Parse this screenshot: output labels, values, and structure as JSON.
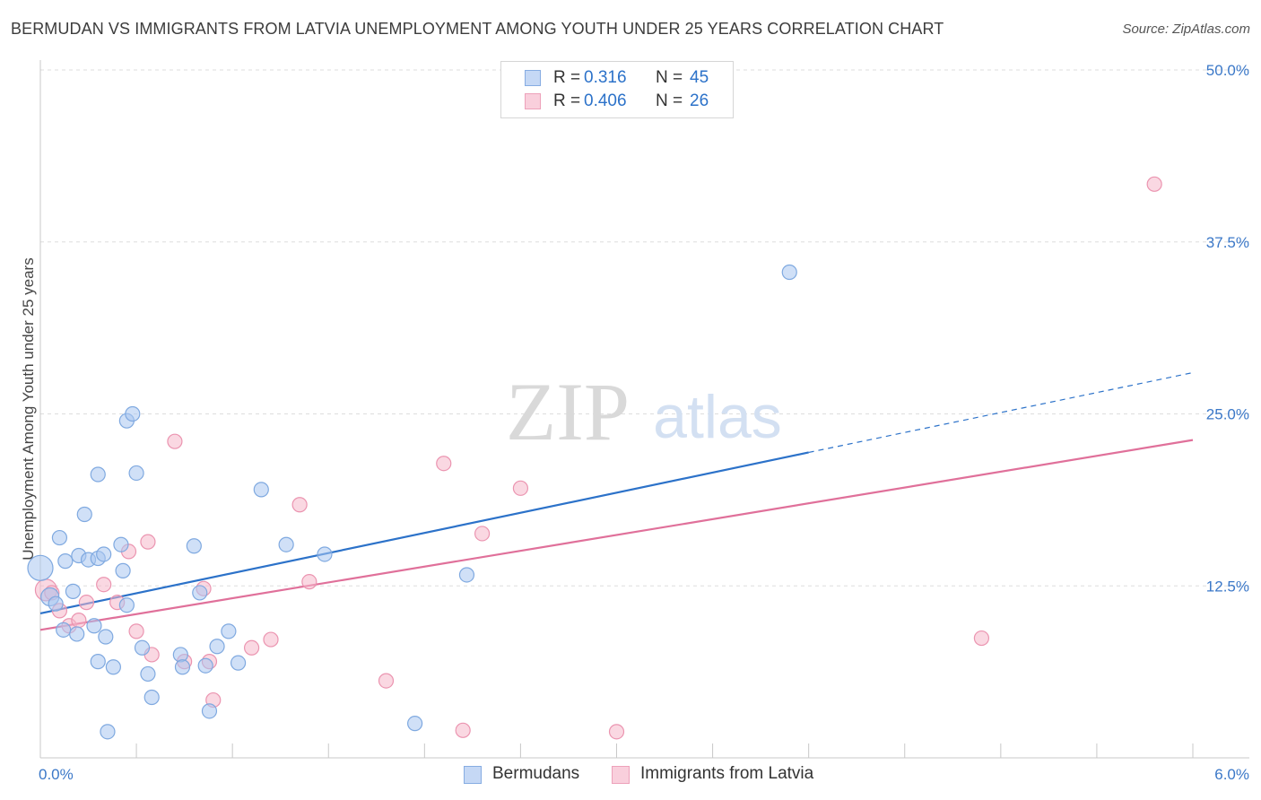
{
  "title": "BERMUDAN VS IMMIGRANTS FROM LATVIA UNEMPLOYMENT AMONG YOUTH UNDER 25 YEARS CORRELATION CHART",
  "source": "Source: ZipAtlas.com",
  "watermark": {
    "zip": "ZIP",
    "atlas": "atlas"
  },
  "legend": {
    "r_label": "R =",
    "n_label": "N =",
    "series": [
      {
        "r": "0.316",
        "n": "45"
      },
      {
        "r": "0.406",
        "n": "26"
      }
    ]
  },
  "bottom_legend": [
    "Bermudans",
    "Immigrants from Latvia"
  ],
  "colors": {
    "blue_fill": "#a9c6f0",
    "blue_stroke": "#7fa9e0",
    "blue_line": "#2c72c9",
    "pink_fill": "#f5b8ca",
    "pink_stroke": "#eb94b0",
    "pink_line": "#e0709a",
    "tick_label": "#3b78c8"
  },
  "chart_data": {
    "type": "scatter",
    "title": "BERMUDAN VS IMMIGRANTS FROM LATVIA UNEMPLOYMENT AMONG YOUTH UNDER 25 YEARS CORRELATION CHART",
    "xlabel": "",
    "ylabel": "Unemployment Among Youth under 25 years",
    "xlim": [
      0,
      6
    ],
    "ylim": [
      0,
      50
    ],
    "x_tick_labels": [
      "0.0%",
      "6.0%"
    ],
    "y_ticks": [
      12.5,
      25,
      37.5,
      50
    ],
    "y_tick_labels": [
      "12.5%",
      "25.0%",
      "37.5%",
      "50.0%"
    ],
    "grid": true,
    "legend_position": "top-center",
    "series": [
      {
        "name": "Bermudans",
        "r": 0.316,
        "n": 45,
        "trend": {
          "x0": 0,
          "y0": 10.5,
          "x1": 4.0,
          "y1": 22.2,
          "dash_x1": 6.0,
          "dash_y1": 28.0
        },
        "points": [
          [
            0.0,
            13.8,
            14
          ],
          [
            0.05,
            11.7,
            10
          ],
          [
            0.08,
            11.2,
            8
          ],
          [
            0.1,
            16.0,
            8
          ],
          [
            0.12,
            9.3,
            8
          ],
          [
            0.13,
            14.3,
            8
          ],
          [
            0.17,
            12.1,
            8
          ],
          [
            0.19,
            9.0,
            8
          ],
          [
            0.2,
            14.7,
            8
          ],
          [
            0.23,
            17.7,
            8
          ],
          [
            0.25,
            14.4,
            8
          ],
          [
            0.28,
            9.6,
            8
          ],
          [
            0.3,
            20.6,
            8
          ],
          [
            0.3,
            14.5,
            8
          ],
          [
            0.3,
            7.0,
            8
          ],
          [
            0.33,
            14.8,
            8
          ],
          [
            0.34,
            8.8,
            8
          ],
          [
            0.35,
            1.9,
            8
          ],
          [
            0.38,
            6.6,
            8
          ],
          [
            0.42,
            15.5,
            8
          ],
          [
            0.43,
            13.6,
            8
          ],
          [
            0.45,
            11.1,
            8
          ],
          [
            0.45,
            24.5,
            8
          ],
          [
            0.48,
            25.0,
            8
          ],
          [
            0.5,
            20.7,
            8
          ],
          [
            0.53,
            8.0,
            8
          ],
          [
            0.56,
            6.1,
            8
          ],
          [
            0.58,
            4.4,
            8
          ],
          [
            0.73,
            7.5,
            8
          ],
          [
            0.74,
            6.6,
            8
          ],
          [
            0.8,
            15.4,
            8
          ],
          [
            0.83,
            12.0,
            8
          ],
          [
            0.86,
            6.7,
            8
          ],
          [
            0.88,
            3.4,
            8
          ],
          [
            0.92,
            8.1,
            8
          ],
          [
            0.98,
            9.2,
            8
          ],
          [
            1.03,
            6.9,
            8
          ],
          [
            1.15,
            19.5,
            8
          ],
          [
            1.28,
            15.5,
            8
          ],
          [
            1.48,
            14.8,
            8
          ],
          [
            1.95,
            2.5,
            8
          ],
          [
            2.22,
            13.3,
            8
          ],
          [
            3.9,
            35.3,
            8
          ]
        ]
      },
      {
        "name": "Immigrants from Latvia",
        "r": 0.406,
        "n": 26,
        "trend": {
          "x0": 0,
          "y0": 9.3,
          "x1": 6.0,
          "y1": 23.1
        },
        "points": [
          [
            0.03,
            12.2,
            12
          ],
          [
            0.06,
            12.0,
            8
          ],
          [
            0.1,
            10.7,
            8
          ],
          [
            0.15,
            9.6,
            8
          ],
          [
            0.2,
            10.0,
            8
          ],
          [
            0.24,
            11.3,
            8
          ],
          [
            0.33,
            12.6,
            8
          ],
          [
            0.4,
            11.3,
            8
          ],
          [
            0.46,
            15.0,
            8
          ],
          [
            0.5,
            9.2,
            8
          ],
          [
            0.56,
            15.7,
            8
          ],
          [
            0.58,
            7.5,
            8
          ],
          [
            0.7,
            23.0,
            8
          ],
          [
            0.75,
            7.0,
            8
          ],
          [
            0.85,
            12.3,
            8
          ],
          [
            0.88,
            7.0,
            8
          ],
          [
            0.9,
            4.2,
            8
          ],
          [
            1.1,
            8.0,
            8
          ],
          [
            1.2,
            8.6,
            8
          ],
          [
            1.35,
            18.4,
            8
          ],
          [
            1.4,
            12.8,
            8
          ],
          [
            1.8,
            5.6,
            8
          ],
          [
            2.1,
            21.4,
            8
          ],
          [
            2.2,
            2.0,
            8
          ],
          [
            2.3,
            16.3,
            8
          ],
          [
            2.5,
            19.6,
            8
          ],
          [
            3.0,
            1.9,
            8
          ],
          [
            4.9,
            8.7,
            8
          ],
          [
            5.8,
            41.7,
            8
          ]
        ]
      }
    ]
  }
}
